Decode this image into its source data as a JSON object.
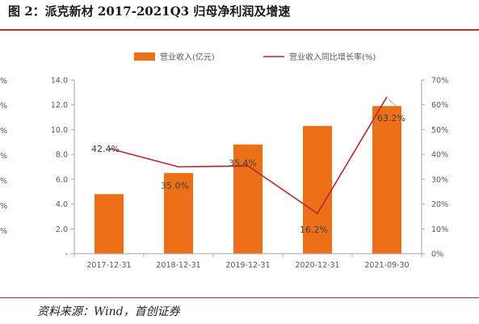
{
  "figure": {
    "title": "图 2：派克新材 2017-2021Q3 归母净利润及增速",
    "source": "资料来源：Wind，首创证券"
  },
  "colors": {
    "bar": "#ed7019",
    "line": "#b5272d",
    "rule": "#b0362b",
    "axis_text": "#595959"
  },
  "chart_data": {
    "type": "bar",
    "categories": [
      "2017-12-31",
      "2018-12-31",
      "2019-12-31",
      "2020-12-31",
      "2021-09-30"
    ],
    "series": [
      {
        "name": "营业收入(亿元)",
        "type": "bar",
        "axis": "left",
        "values": [
          4.8,
          6.5,
          8.8,
          10.3,
          11.9
        ]
      },
      {
        "name": "营业收入同比增长率(%)",
        "type": "line",
        "axis": "right",
        "values": [
          42.4,
          35.0,
          35.4,
          16.2,
          63.2
        ],
        "labels": [
          "42.4%",
          "35.0%",
          "35.4%",
          "16.2%",
          "63.2%"
        ]
      }
    ],
    "y_left": {
      "ylim": [
        0,
        14
      ],
      "ticks": [
        "-",
        "2.0",
        "4.0",
        "6.0",
        "8.0",
        "10.0",
        "12.0",
        "14.0"
      ]
    },
    "y_right": {
      "ylim": [
        0,
        70
      ],
      "ticks": [
        "0%",
        "10%",
        "20%",
        "30%",
        "40%",
        "50%",
        "60%",
        "70%"
      ]
    },
    "y_far_left": {
      "ticks": [
        "%",
        "%",
        "%",
        "%",
        "%",
        "%",
        "%"
      ]
    },
    "legend_position": "top",
    "grid": false
  }
}
